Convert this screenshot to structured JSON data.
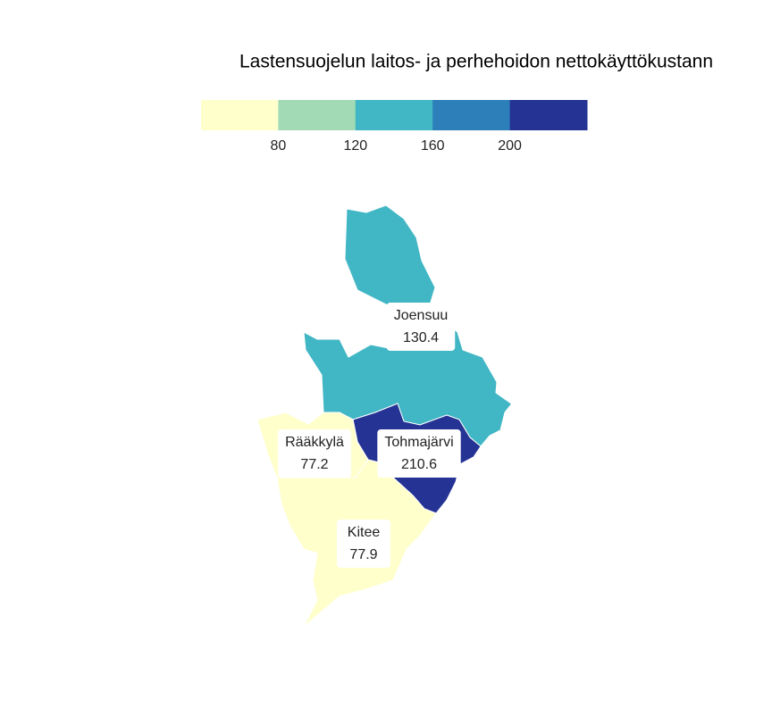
{
  "title": "Lastensuojelun laitos- ja perhehoidon nettokäyttökustann",
  "legend": {
    "breaks": [
      80,
      120,
      160,
      200
    ],
    "colors": [
      "#ffffcc",
      "#a1dab4",
      "#41b6c4",
      "#2c7fb8",
      "#253494"
    ]
  },
  "regions": [
    {
      "name": "Joensuu",
      "value": 130.4
    },
    {
      "name": "Tohmajärvi",
      "value": 210.6
    },
    {
      "name": "Rääkkylä",
      "value": 77.2
    },
    {
      "name": "Kitee",
      "value": 77.9
    }
  ]
}
